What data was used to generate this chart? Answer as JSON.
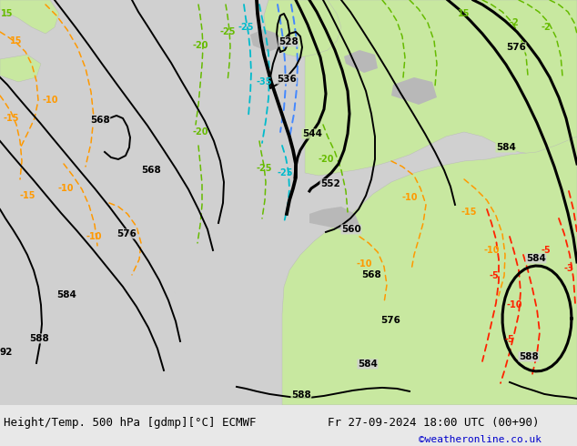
{
  "title_left": "Height/Temp. 500 hPa [gdmp][°C] ECMWF",
  "title_right": "Fr 27-09-2024 18:00 UTC (00+90)",
  "credit": "©weatheronline.co.uk",
  "bg_color": "#d8d8d8",
  "land_green_light": "#c8e8a0",
  "land_green_mid": "#b0d880",
  "sea_color": "#d0d0d0",
  "gray_land": "#b8b8b8",
  "contour_color": "#000000",
  "orange_color": "#ff9900",
  "green_temp_color": "#66bb00",
  "cyan_color": "#00bbcc",
  "blue_color": "#4488ff",
  "red_color": "#ff2200",
  "bottom_bar_color": "#e8e8e8",
  "bottom_text_color": "#000000",
  "credit_color": "#0000cc",
  "font_size_bottom": 9
}
